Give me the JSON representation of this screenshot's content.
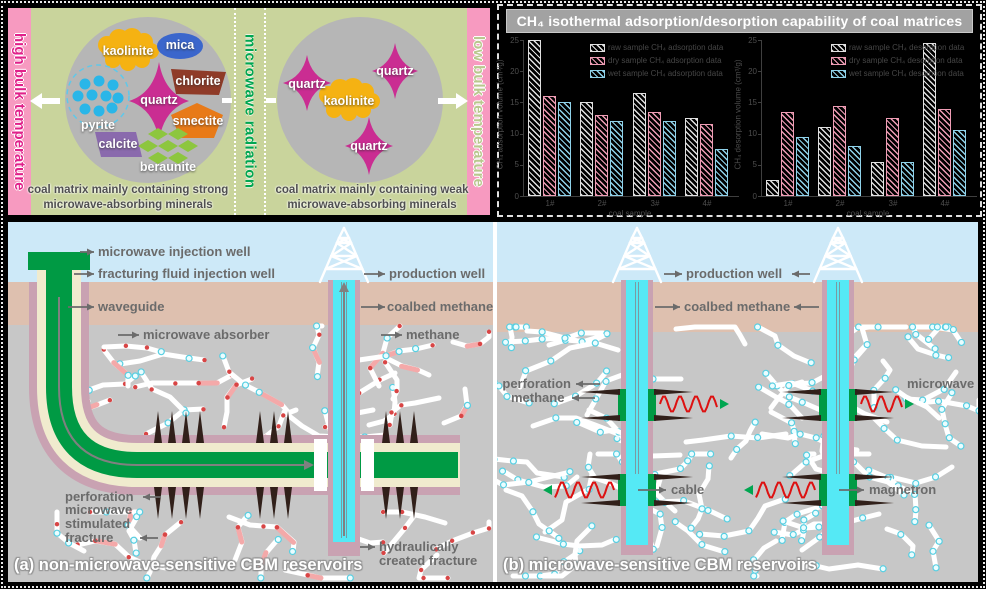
{
  "top_left": {
    "left_strip": "high bulk temperature",
    "right_strip": "low bulk temperature",
    "center_label": "microwave radiation",
    "minerals": {
      "kaolinite": "kaolinite",
      "mica": "mica",
      "chlorite": "chlorite",
      "quartz": "quartz",
      "smectite": "smectite",
      "pyrite": "pyrite",
      "calcite": "calcite",
      "beraunite": "beraunite"
    },
    "left_caption1": "coal matrix mainly containing strong",
    "left_caption2": "microwave-absorbing minerals",
    "right_caption1": "coal matrix mainly containing weak",
    "right_caption2": "microwave-absorbing minerals"
  },
  "top_right": {
    "title": "CH₄ isothermal adsorption/desorption capability of coal matrices"
  },
  "chart_data": [
    {
      "type": "bar",
      "title": "",
      "categories": [
        "1#",
        "2#",
        "3#",
        "4#"
      ],
      "series": [
        {
          "name": "raw sample CH₄ adsorption data",
          "color": "#e0e0e0",
          "values": [
            25,
            15,
            16.5,
            12.5
          ]
        },
        {
          "name": "dry sample CH₄ adsorption data",
          "color": "#ef9db5",
          "values": [
            16,
            13,
            13.5,
            11.5
          ]
        },
        {
          "name": "wet sample CH₄ adsorption data",
          "color": "#8fd2ea",
          "values": [
            15,
            12,
            12,
            7.5
          ]
        }
      ],
      "xlabel": "coal sample",
      "ylabel": "CH₄ adsorption volume (cm³/g)",
      "ylim": [
        0,
        25
      ],
      "yticks": [
        0,
        5,
        10,
        15,
        20,
        25
      ],
      "legend_position": "top"
    },
    {
      "type": "bar",
      "title": "",
      "categories": [
        "1#",
        "2#",
        "3#",
        "4#"
      ],
      "series": [
        {
          "name": "raw sample CH₄ desorption data",
          "color": "#e0e0e0",
          "values": [
            2.5,
            11,
            5.5,
            24.5
          ]
        },
        {
          "name": "dry sample CH₄ desorption data",
          "color": "#ef9db5",
          "values": [
            13.5,
            14.5,
            12.5,
            14
          ]
        },
        {
          "name": "wet sample CH₄ desorption data",
          "color": "#8fd2ea",
          "values": [
            9.5,
            8,
            5.5,
            10.5
          ]
        }
      ],
      "xlabel": "coal sample",
      "ylabel": "CH₄ desorption volume (cm³/g)",
      "ylim": [
        0,
        25
      ],
      "yticks": [
        0,
        5,
        10,
        15,
        20,
        25
      ],
      "legend_position": "top"
    }
  ],
  "panel_a": {
    "labels": {
      "microwave_injection_well": "microwave injection well",
      "fracturing_fluid_injection_well": "fracturing fluid injection well",
      "waveguide": "waveguide",
      "microwave_absorber": "microwave absorber",
      "production_well": "production well",
      "coalbed_methane": "coalbed methane",
      "methane": "methane",
      "perforation": "perforation",
      "mw_frac1": "microwave",
      "mw_frac2": "stimulated",
      "mw_frac3": "fracture",
      "hyd1": "hydraulically",
      "hyd2": "created fracture"
    },
    "caption": "(a) non-microwave-sensitive CBM reservoirs"
  },
  "panel_b": {
    "labels": {
      "production_well": "production well",
      "coalbed_methane": "coalbed methane",
      "perforation": "perforation",
      "methane": "methane",
      "microwave": "microwave",
      "cable": "cable",
      "magnetron": "magnetron"
    },
    "caption": "(b) microwave-sensitive CBM reservoirs"
  },
  "colors": {
    "panel_bg_green": "#c9d49c",
    "strip_pink": "#f79ac0",
    "microwave_radiation_green": "#00a651",
    "sky": "#cde9f8",
    "overburden": "#dec0af",
    "coal_seam": "#c7c7c7",
    "well_green": "#009a44",
    "casing_cream": "#f0ebce",
    "casing_pink": "#c9a2b2",
    "bore_cyan": "#55e9f5",
    "microwave_wave_red": "#dd1111",
    "label_gray": "#6b6b6b",
    "quartz_magenta": "#ca2d92",
    "kaolinite_yellow": "#f5b212",
    "mica_blue": "#3b66cc",
    "chlorite_brown": "#8f3b28",
    "smectite_orange": "#e87a18",
    "pyrite_cyan": "#2ab6e8",
    "calcite_purple": "#8a6aad",
    "beraunite_green": "#8dc63f"
  }
}
